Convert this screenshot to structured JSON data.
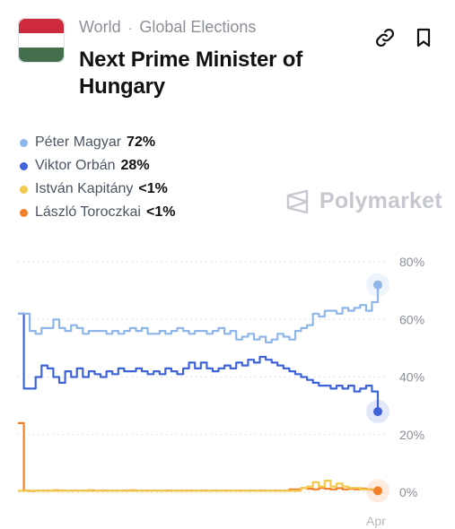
{
  "header": {
    "breadcrumb": [
      "World",
      "Global Elections"
    ],
    "breadcrumb_separator": "·",
    "title": "Next Prime Minister of Hungary",
    "flag": {
      "icon": "hungary-flag-icon",
      "stripes": [
        "#cd2a3e",
        "#ffffff",
        "#436f4d"
      ]
    },
    "actions": [
      {
        "icon": "link-icon"
      },
      {
        "icon": "bookmark-icon"
      }
    ]
  },
  "legend": [
    {
      "name": "Péter Magyar",
      "value": "72%",
      "color": "#8fb6ea"
    },
    {
      "name": "Viktor Orbán",
      "value": "28%",
      "color": "#3f63d8"
    },
    {
      "name": "István Kapitány",
      "value": "<1%",
      "color": "#f2c94c"
    },
    {
      "name": "László Toroczkai",
      "value": "<1%",
      "color": "#f0802a"
    }
  ],
  "watermark": {
    "text": "Polymarket",
    "icon": "polymarket-logo-icon"
  },
  "chart_data": {
    "type": "line",
    "y_ticks": [
      "80%",
      "60%",
      "40%",
      "20%",
      "0%"
    ],
    "y_tick_values": [
      80,
      60,
      40,
      20,
      0
    ],
    "ylim": [
      0,
      80
    ],
    "x_ticks": [
      "Apr"
    ],
    "grid": true,
    "grid_style": "dotted",
    "series": [
      {
        "name": "Péter Magyar",
        "color": "#8fb6ea",
        "values": [
          62,
          62,
          56,
          55,
          57,
          57,
          60,
          57,
          56,
          58,
          57,
          55,
          56,
          56,
          56,
          55,
          56,
          55,
          56,
          57,
          56,
          57,
          55,
          55,
          56,
          55,
          56,
          57,
          56,
          55,
          56,
          56,
          55,
          56,
          57,
          55,
          56,
          53,
          54,
          55,
          53,
          54,
          52,
          53,
          55,
          54,
          53,
          56,
          57,
          58,
          62,
          61,
          63,
          63,
          62,
          64,
          63,
          64,
          65,
          63,
          66,
          72
        ]
      },
      {
        "name": "Viktor Orbán",
        "color": "#3f63d8",
        "values": [
          62,
          36,
          36,
          40,
          44,
          43,
          40,
          38,
          42,
          40,
          43,
          40,
          42,
          41,
          40,
          42,
          41,
          43,
          42,
          42,
          43,
          42,
          41,
          42,
          41,
          43,
          42,
          41,
          43,
          45,
          43,
          45,
          43,
          42,
          43,
          44,
          43,
          45,
          44,
          46,
          45,
          47,
          46,
          45,
          44,
          43,
          42,
          41,
          40,
          39,
          38,
          37,
          37,
          36,
          37,
          36,
          37,
          35,
          36,
          37,
          35,
          28
        ]
      },
      {
        "name": "István Kapitány",
        "color": "#f2c94c",
        "values": [
          0.5,
          0.5,
          0.5,
          0.5,
          0.5,
          0.5,
          0.5,
          0.5,
          0.5,
          0.5,
          0.5,
          0.5,
          0.5,
          0.5,
          0.5,
          0.5,
          0.5,
          0.5,
          0.5,
          0.5,
          0.5,
          0.5,
          0.5,
          0.5,
          0.5,
          0.5,
          0.5,
          0.5,
          0.5,
          0.5,
          0.5,
          0.5,
          0.5,
          0.5,
          0.5,
          0.5,
          0.5,
          0.5,
          0.5,
          0.5,
          0.5,
          0.5,
          0.5,
          0.5,
          0.5,
          0.5,
          0.5,
          0.5,
          1.5,
          2,
          3.5,
          2,
          4,
          2,
          3,
          2,
          1.5,
          1.5,
          1,
          1,
          1,
          0.5
        ]
      },
      {
        "name": "László Toroczkai",
        "color": "#f0802a",
        "values": [
          24,
          0.6,
          0.4,
          0.5,
          0.6,
          0.5,
          0.7,
          0.6,
          0.5,
          0.6,
          0.5,
          0.6,
          0.7,
          0.5,
          0.6,
          0.5,
          0.6,
          0.5,
          0.6,
          0.7,
          0.5,
          0.6,
          0.5,
          0.6,
          0.5,
          0.6,
          0.5,
          0.6,
          0.5,
          0.6,
          0.5,
          0.6,
          0.5,
          0.6,
          0.5,
          0.6,
          0.5,
          0.6,
          0.5,
          0.6,
          0.5,
          0.6,
          0.5,
          0.6,
          0.5,
          0.6,
          1,
          1,
          1.5,
          1.2,
          1,
          1.5,
          1.2,
          1,
          1.4,
          1,
          1.2,
          1,
          1.3,
          1,
          0.8,
          0.5
        ]
      }
    ]
  }
}
